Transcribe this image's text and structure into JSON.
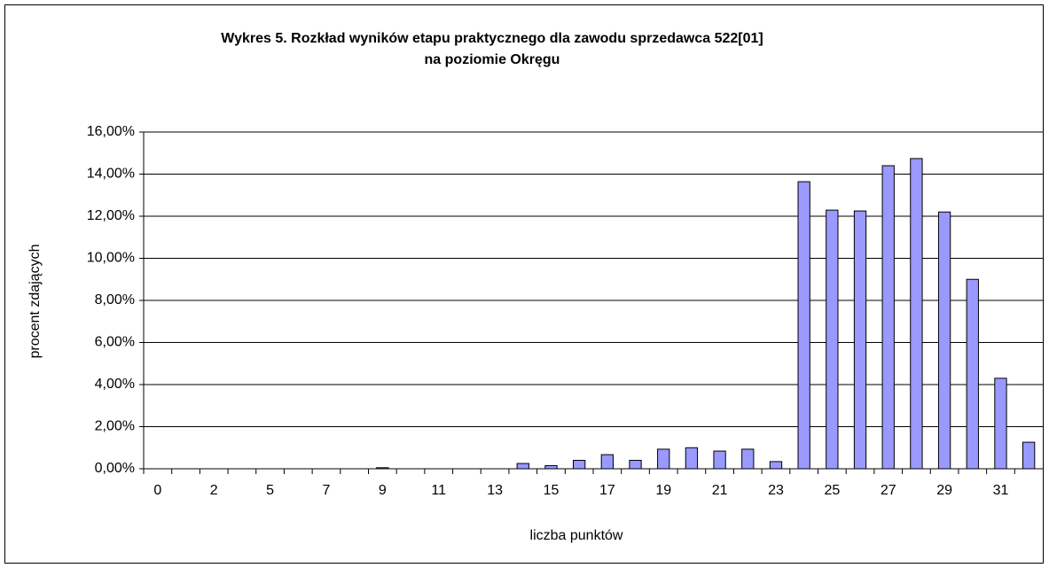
{
  "chart_data": {
    "type": "bar",
    "title": "Wykres 5. Rozkład wyników etapu praktycznego dla zawodu sprzedawca 522[01]",
    "subtitle": "na poziomie Okręgu",
    "x_label": "liczba punktów",
    "y_label": "procent zdających",
    "categories": [
      "0",
      null,
      "2",
      null,
      "5",
      null,
      "7",
      null,
      "9",
      null,
      "11",
      null,
      "13",
      null,
      "15",
      null,
      "17",
      null,
      "19",
      null,
      "21",
      null,
      "23",
      null,
      "25",
      null,
      "27",
      null,
      "29",
      null,
      "31",
      null
    ],
    "values": [
      0,
      0,
      0,
      0,
      0,
      0,
      0,
      0,
      0.05,
      0,
      0,
      0,
      0,
      0.25,
      0.15,
      0.4,
      0.67,
      0.4,
      0.93,
      1.0,
      0.84,
      0.93,
      0.34,
      13.64,
      12.29,
      12.25,
      14.4,
      14.74,
      12.2,
      9.0,
      4.3,
      1.26
    ],
    "color": "#9999ff",
    "ylim": [
      0,
      16
    ],
    "yticks": [
      {
        "value": 0,
        "label": "0,00%"
      },
      {
        "value": 2,
        "label": "2,00%"
      },
      {
        "value": 4,
        "label": "4,00%"
      },
      {
        "value": 6,
        "label": "6,00%"
      },
      {
        "value": 8,
        "label": "8,00%"
      },
      {
        "value": 10,
        "label": "10,00%"
      },
      {
        "value": 12,
        "label": "12,00%"
      },
      {
        "value": 14,
        "label": "14,00%"
      },
      {
        "value": 16,
        "label": "16,00%"
      }
    ],
    "grid": true
  }
}
